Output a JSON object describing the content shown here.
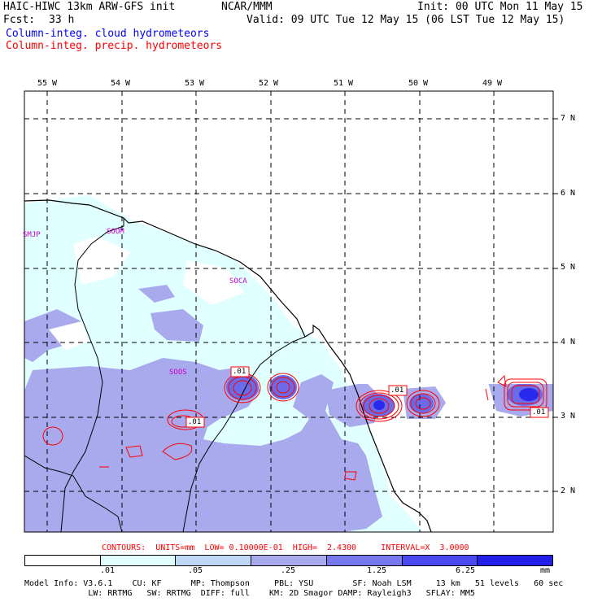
{
  "header": {
    "title_left": "HAIC-HIWC 13km ARW-GFS init",
    "title_center": "NCAR/MMM",
    "init": "Init: 00 UTC Mon 11 May 15",
    "fcst_label": "Fcst:",
    "fcst_value": "33 h",
    "valid": "Valid: 09 UTC Tue 12 May 15 (06 LST Tue 12 May 15)",
    "field_cloud": "Column-integ. cloud hydrometeors",
    "field_precip": "Column-integ. precip. hydrometeors"
  },
  "map": {
    "lon_labels": [
      "55 W",
      "54 W",
      "53 W",
      "52 W",
      "51 W",
      "50 W",
      "49 W"
    ],
    "lat_labels": [
      "7 N",
      "6 N",
      "5 N",
      "4 N",
      "3 N",
      "2 N"
    ],
    "places": [
      "SMJP",
      "SOOM",
      "SOCA",
      "SOOS"
    ],
    "contour_labels": [
      ".01",
      ".01",
      ".01",
      ".01"
    ]
  },
  "contours_line": "CONTOURS:  UNITS=mm  LOW= 0.10000E-01  HIGH=  2.4300     INTERVAL=X  3.0000",
  "legend": {
    "ticks": [
      ".01",
      ".05",
      ".25",
      "1.25",
      "6.25"
    ],
    "unit": "mm",
    "colors": [
      "#ffffff",
      "#e0ffff",
      "#bfd6f5",
      "#a9a9ee",
      "#7777ee",
      "#4a4af0",
      "#2020e8"
    ]
  },
  "footer": {
    "line1": "Model Info: V3.6.1    CU: KF      MP: Thompson     PBL: YSU        SF: Noah LSM     13 km   51 levels   60 sec",
    "line2": "             LW: RRTMG   SW: RRTMG  DIFF: full    KM: 2D Smagor DAMP: Rayleigh3   SFLAY: MM5"
  },
  "colors": {
    "cloud_light": "#e0ffff",
    "cloud_mid": "#a9a9ee",
    "cloud_strong": "#6b6bea",
    "precip_line": "#ff0000",
    "coast_line": "#000000"
  }
}
